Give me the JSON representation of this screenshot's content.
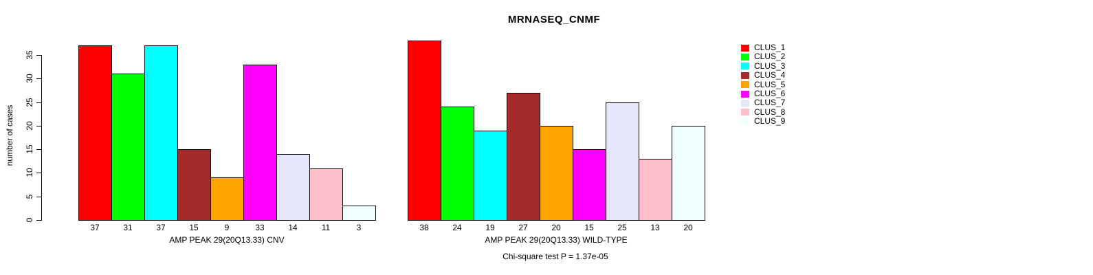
{
  "title": "MRNASEQ_CNMF",
  "ylabel": "number of cases",
  "footnote": "Chi-square test P = 1.37e-05",
  "palette": [
    "#FF0000",
    "#00FF00",
    "#00FFFF",
    "#A52A2A",
    "#FFA500",
    "#FF00FF",
    "#E6E6FA",
    "#FFC0CB",
    "#F0FFFF"
  ],
  "legend": {
    "position": "right",
    "entries": [
      {
        "label": "CLUS_1",
        "color": "#FF0000"
      },
      {
        "label": "CLUS_2",
        "color": "#00FF00"
      },
      {
        "label": "CLUS_3",
        "color": "#00FFFF"
      },
      {
        "label": "CLUS_4",
        "color": "#A52A2A"
      },
      {
        "label": "CLUS_5",
        "color": "#FFA500"
      },
      {
        "label": "CLUS_6",
        "color": "#FF00FF"
      },
      {
        "label": "CLUS_7",
        "color": "#E6E6FA"
      },
      {
        "label": "CLUS_8",
        "color": "#FFC0CB"
      },
      {
        "label": "CLUS_9",
        "color": "#F0FFFF"
      }
    ]
  },
  "chart_data": [
    {
      "type": "bar",
      "title": "",
      "xlabel": "AMP PEAK 29(20Q13.33) CNV",
      "ylabel": "number of cases",
      "categories": [
        "CLUS_1",
        "CLUS_2",
        "CLUS_3",
        "CLUS_4",
        "CLUS_5",
        "CLUS_6",
        "CLUS_7",
        "CLUS_8",
        "CLUS_9"
      ],
      "values": [
        37,
        31,
        37,
        15,
        9,
        33,
        14,
        11,
        3
      ],
      "bar_value_labels": [
        "37",
        "31",
        "37",
        "15",
        "9",
        "33",
        "14",
        "11",
        "3"
      ],
      "ylim": [
        0,
        38
      ],
      "yticks": [
        0,
        5,
        10,
        15,
        20,
        25,
        30,
        35
      ],
      "grid": false,
      "legend_position": "right"
    },
    {
      "type": "bar",
      "title": "",
      "xlabel": "AMP PEAK 29(20Q13.33) WILD-TYPE",
      "ylabel": "number of cases",
      "categories": [
        "CLUS_1",
        "CLUS_2",
        "CLUS_3",
        "CLUS_4",
        "CLUS_5",
        "CLUS_6",
        "CLUS_7",
        "CLUS_8",
        "CLUS_9"
      ],
      "values": [
        38,
        24,
        19,
        27,
        20,
        15,
        25,
        13,
        20
      ],
      "bar_value_labels": [
        "38",
        "24",
        "19",
        "27",
        "20",
        "15",
        "25",
        "13",
        "20"
      ],
      "ylim": [
        0,
        38
      ],
      "yticks": [
        0,
        5,
        10,
        15,
        20,
        25,
        30,
        35
      ],
      "grid": false,
      "legend_position": "right"
    }
  ]
}
